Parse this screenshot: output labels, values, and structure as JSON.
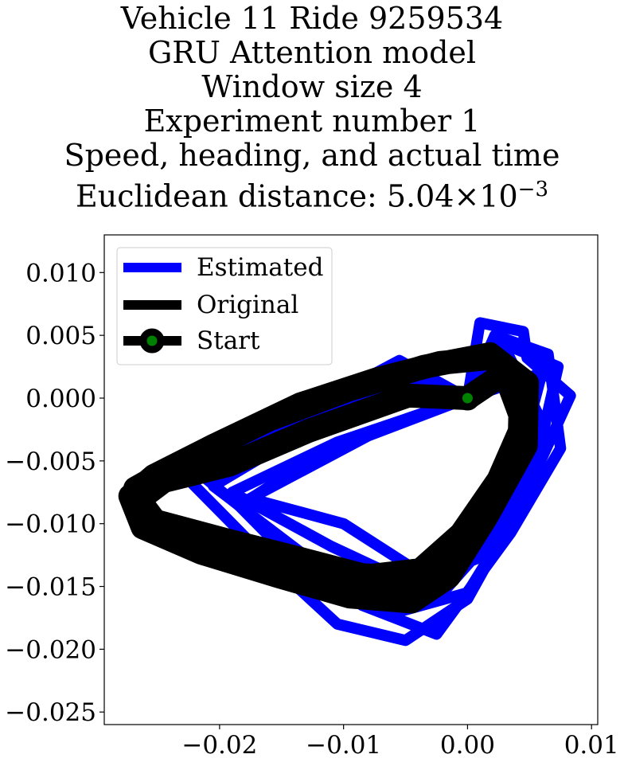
{
  "title_lines": [
    "Vehicle 11 Ride 9259534",
    "GRU Attention model",
    "Window size 4",
    "Experiment number 1",
    "Speed, heading, and actual time"
  ],
  "distance_label": {
    "prefix": "Euclidean distance: ",
    "mantissa": "5.04",
    "times": "×",
    "base": "10",
    "exponent": "−3"
  },
  "chart_data": {
    "type": "line",
    "xlim": [
      -0.0293,
      0.0105
    ],
    "ylim": [
      -0.026,
      0.013
    ],
    "x_ticks": [
      {
        "value": -0.02,
        "label": "−0.02"
      },
      {
        "value": -0.01,
        "label": "−0.01"
      },
      {
        "value": 0.0,
        "label": "0.00"
      },
      {
        "value": 0.01,
        "label": "0.01"
      }
    ],
    "y_ticks": [
      {
        "value": 0.01,
        "label": "0.010"
      },
      {
        "value": 0.005,
        "label": "0.005"
      },
      {
        "value": 0.0,
        "label": "0.000"
      },
      {
        "value": -0.005,
        "label": "−0.005"
      },
      {
        "value": -0.01,
        "label": "−0.010"
      },
      {
        "value": -0.015,
        "label": "−0.015"
      },
      {
        "value": -0.02,
        "label": "−0.020"
      },
      {
        "value": -0.025,
        "label": "−0.025"
      }
    ],
    "grid": false,
    "legend_position": "top-left",
    "series": [
      {
        "name": "Estimated",
        "color": "#0000ff",
        "paths": [
          [
            [
              0.0,
              0.0
            ],
            [
              0.001,
              0.006
            ],
            [
              0.0045,
              0.0053
            ],
            [
              0.0048,
              0.0032
            ],
            [
              0.0083,
              0.0002
            ],
            [
              0.0045,
              -0.008
            ],
            [
              0.0,
              -0.016
            ],
            [
              -0.005,
              -0.0193
            ],
            [
              -0.0105,
              -0.018
            ],
            [
              -0.016,
              -0.013
            ],
            [
              -0.0225,
              -0.0065
            ],
            [
              -0.015,
              -0.002
            ],
            [
              -0.0055,
              0.003
            ],
            [
              0.0,
              0.0
            ]
          ],
          [
            [
              0.0,
              0.0
            ],
            [
              0.0022,
              0.005
            ],
            [
              0.0065,
              0.0035
            ],
            [
              0.0075,
              -0.004
            ],
            [
              0.0035,
              -0.0107
            ],
            [
              -0.0025,
              -0.0188
            ],
            [
              -0.0085,
              -0.0165
            ],
            [
              -0.0148,
              -0.0115
            ],
            [
              -0.021,
              -0.0065
            ],
            [
              -0.013,
              -0.0015
            ],
            [
              -0.005,
              0.002
            ],
            [
              0.0,
              0.0
            ]
          ],
          [
            [
              0.0,
              0.0
            ],
            [
              0.0025,
              0.0045
            ],
            [
              0.0073,
              0.0025
            ],
            [
              0.005,
              -0.0075
            ],
            [
              0.0,
              -0.0155
            ],
            [
              -0.0055,
              -0.017
            ],
            [
              -0.0125,
              -0.013
            ],
            [
              -0.0205,
              -0.007
            ],
            [
              -0.012,
              -0.002
            ],
            [
              -0.0045,
              0.0015
            ],
            [
              0.0,
              0.0
            ]
          ],
          [
            [
              0.0,
              0.0
            ],
            [
              0.003,
              0.004
            ],
            [
              0.0058,
              -0.0015
            ],
            [
              0.0025,
              -0.0105
            ],
            [
              -0.002,
              -0.0155
            ],
            [
              -0.008,
              -0.0145
            ],
            [
              -0.0145,
              -0.0125
            ],
            [
              -0.0185,
              -0.0085
            ],
            [
              -0.008,
              -0.003
            ],
            [
              0.0,
              0.0
            ]
          ],
          [
            [
              0.0,
              0.0
            ],
            [
              0.006,
              0.002
            ],
            [
              0.0032,
              -0.0085
            ],
            [
              -0.004,
              -0.0138
            ],
            [
              -0.01,
              -0.01
            ],
            [
              -0.0175,
              -0.008
            ],
            [
              -0.012,
              -0.0045
            ],
            [
              -0.0045,
              -0.0015
            ],
            [
              0.0,
              0.0
            ]
          ],
          [
            [
              0.0,
              0.0
            ],
            [
              0.002,
              0.003
            ],
            [
              0.0065,
              -0.003
            ],
            [
              0.0015,
              -0.0125
            ],
            [
              -0.0045,
              -0.0148
            ],
            [
              -0.011,
              -0.0118
            ],
            [
              -0.019,
              -0.0075
            ],
            [
              -0.0105,
              -0.0035
            ],
            [
              0.0,
              0.0
            ]
          ]
        ]
      },
      {
        "name": "Original",
        "color": "#000000",
        "paths": [
          [
            [
              0.0,
              0.0
            ],
            [
              -0.0048,
              0.0002
            ],
            [
              -0.0128,
              -0.0026
            ],
            [
              -0.0192,
              -0.0053
            ],
            [
              -0.0245,
              -0.0066
            ],
            [
              -0.0265,
              -0.0081
            ],
            [
              -0.0252,
              -0.0098
            ],
            [
              -0.0195,
              -0.0113
            ],
            [
              -0.0135,
              -0.0128
            ],
            [
              -0.0085,
              -0.0141
            ],
            [
              -0.0043,
              -0.0143
            ],
            [
              -0.0013,
              -0.0122
            ],
            [
              0.0018,
              -0.0078
            ],
            [
              0.0042,
              -0.0033
            ],
            [
              0.0043,
              0.0005
            ],
            [
              0.002,
              0.0032
            ],
            [
              -0.0022,
              0.0028
            ],
            [
              -0.0073,
              0.0015
            ],
            [
              -0.0135,
              -0.0005
            ],
            [
              -0.0205,
              -0.0038
            ],
            [
              -0.0253,
              -0.0062
            ],
            [
              -0.0272,
              -0.0078
            ],
            [
              -0.0262,
              -0.0103
            ],
            [
              -0.0215,
              -0.0123
            ],
            [
              -0.0152,
              -0.0142
            ],
            [
              -0.0095,
              -0.0158
            ],
            [
              -0.0045,
              -0.0162
            ],
            [
              -0.0015,
              -0.0142
            ],
            [
              0.0015,
              -0.0095
            ],
            [
              0.0047,
              -0.0038
            ],
            [
              0.0048,
              0.0012
            ],
            [
              0.0018,
              0.0035
            ],
            [
              -0.0035,
              0.0025
            ],
            [
              -0.0095,
              0.0007
            ],
            [
              -0.016,
              -0.0017
            ],
            [
              -0.0232,
              -0.0052
            ],
            [
              -0.0268,
              -0.0072
            ],
            [
              -0.0258,
              -0.0097
            ],
            [
              -0.0212,
              -0.011
            ],
            [
              -0.0148,
              -0.0128
            ],
            [
              -0.0082,
              -0.0142
            ],
            [
              -0.0038,
              -0.0137
            ],
            [
              -0.0005,
              -0.0108
            ],
            [
              0.0025,
              -0.0065
            ],
            [
              0.0045,
              -0.002
            ],
            [
              0.003,
              0.002
            ],
            [
              0.0,
              0.0
            ]
          ]
        ]
      }
    ],
    "start": {
      "name": "Start",
      "x": 0.0,
      "y": 0.0,
      "marker_edge_color": "#000000",
      "marker_face_color": "#008000"
    }
  }
}
